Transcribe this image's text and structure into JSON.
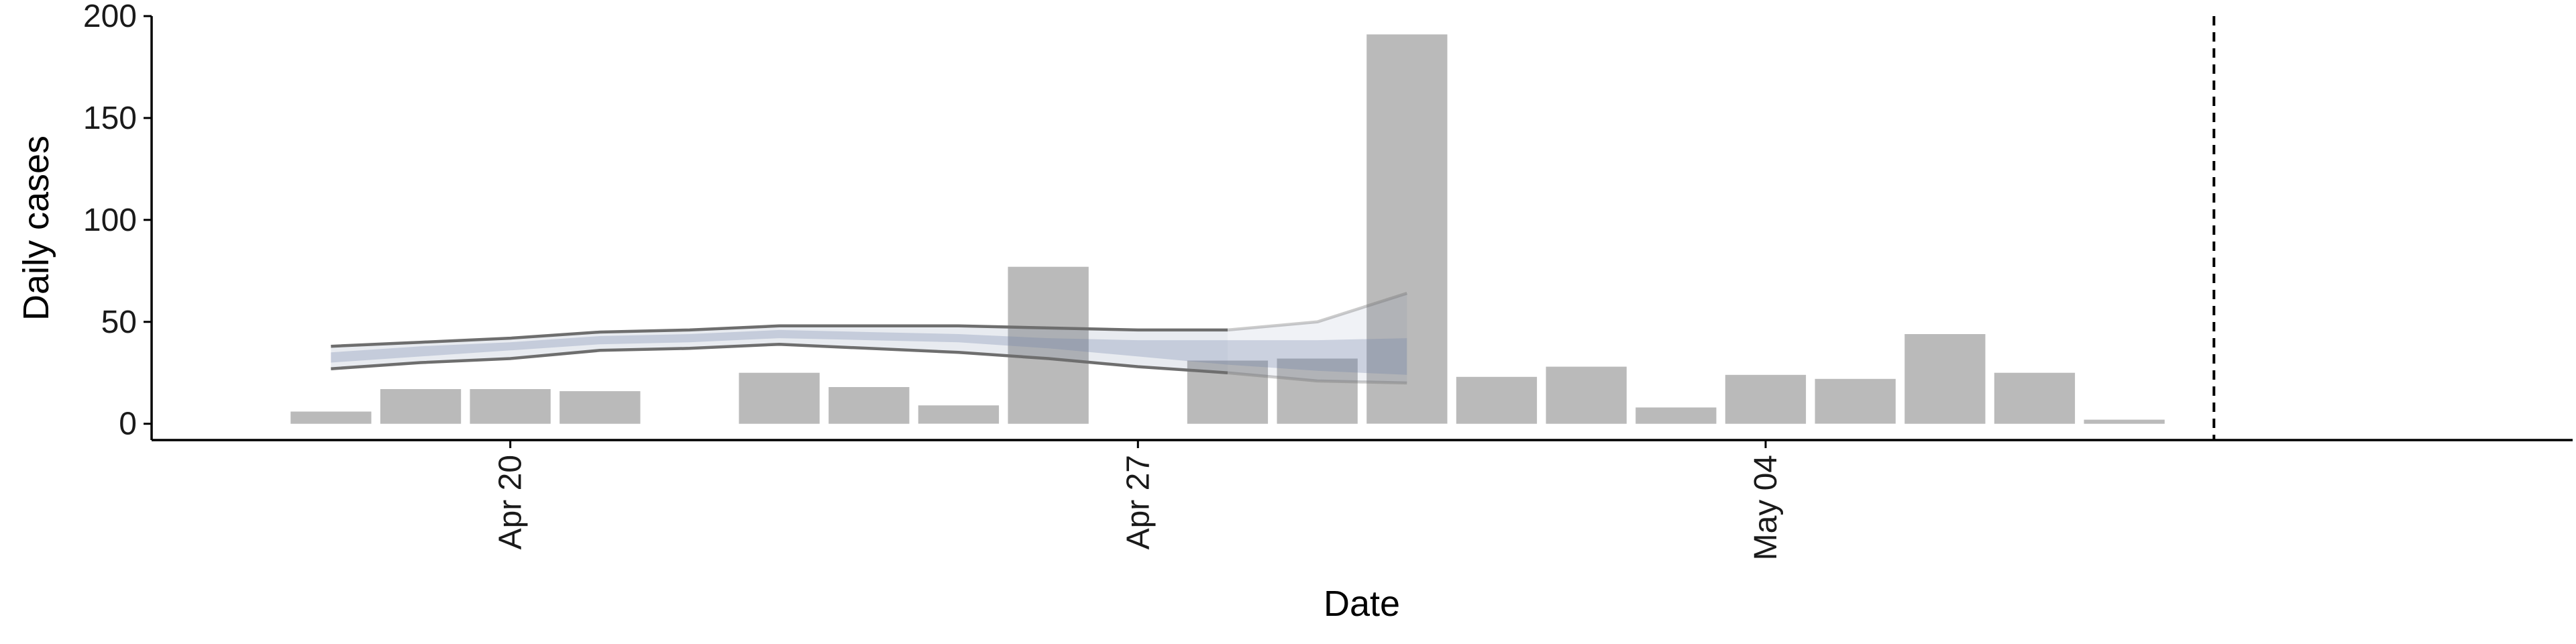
{
  "chart_data": {
    "type": "bar",
    "xlabel": "Date",
    "ylabel": "Daily cases",
    "x_axis_kind": "date",
    "x_range": [
      "2020-04-16",
      "2020-05-13"
    ],
    "ylim": [
      -8,
      200
    ],
    "y_ticks": [
      0,
      50,
      100,
      150,
      200
    ],
    "x_ticks": [
      {
        "date": "2020-04-20",
        "label": "Apr 20"
      },
      {
        "date": "2020-04-27",
        "label": "Apr 27"
      },
      {
        "date": "2020-05-04",
        "label": "May 04"
      }
    ],
    "grid": false,
    "legend": "none",
    "series": [
      {
        "type": "bar",
        "color": "#bababa",
        "points": [
          {
            "date": "2020-04-18",
            "value": 6
          },
          {
            "date": "2020-04-19",
            "value": 17
          },
          {
            "date": "2020-04-20",
            "value": 17
          },
          {
            "date": "2020-04-21",
            "value": 16
          },
          {
            "date": "2020-04-23",
            "value": 25
          },
          {
            "date": "2020-04-24",
            "value": 18
          },
          {
            "date": "2020-04-25",
            "value": 9
          },
          {
            "date": "2020-04-26",
            "value": 77
          },
          {
            "date": "2020-04-28",
            "value": 31
          },
          {
            "date": "2020-04-29",
            "value": 32
          },
          {
            "date": "2020-04-30",
            "value": 191
          },
          {
            "date": "2020-05-01",
            "value": 23
          },
          {
            "date": "2020-05-02",
            "value": 28
          },
          {
            "date": "2020-05-03",
            "value": 8
          },
          {
            "date": "2020-05-04",
            "value": 24
          },
          {
            "date": "2020-05-05",
            "value": 22
          },
          {
            "date": "2020-05-06",
            "value": 44
          },
          {
            "date": "2020-05-07",
            "value": 25
          },
          {
            "date": "2020-05-08",
            "value": 2
          }
        ]
      },
      {
        "type": "band",
        "color": "#5d7097",
        "points": [
          {
            "date": "2020-04-18",
            "low": 27,
            "high": 38
          },
          {
            "date": "2020-04-19",
            "low": 30,
            "high": 40
          },
          {
            "date": "2020-04-20",
            "low": 32,
            "high": 42
          },
          {
            "date": "2020-04-21",
            "low": 36,
            "high": 45
          },
          {
            "date": "2020-04-22",
            "low": 37,
            "high": 46
          },
          {
            "date": "2020-04-23",
            "low": 39,
            "high": 48
          },
          {
            "date": "2020-04-24",
            "low": 37,
            "high": 48
          },
          {
            "date": "2020-04-25",
            "low": 35,
            "high": 48
          },
          {
            "date": "2020-04-26",
            "low": 32,
            "high": 47
          },
          {
            "date": "2020-04-27",
            "low": 28,
            "high": 46
          },
          {
            "date": "2020-04-28",
            "low": 25,
            "high": 46
          },
          {
            "date": "2020-04-29",
            "low": 21,
            "high": 50
          },
          {
            "date": "2020-04-30",
            "low": 20,
            "high": 64
          }
        ]
      },
      {
        "type": "band",
        "color": "#6b7fa6",
        "points": [
          {
            "date": "2020-04-18",
            "low": 30,
            "high": 35
          },
          {
            "date": "2020-04-19",
            "low": 33,
            "high": 38
          },
          {
            "date": "2020-04-20",
            "low": 36,
            "high": 40
          },
          {
            "date": "2020-04-21",
            "low": 39,
            "high": 43
          },
          {
            "date": "2020-04-22",
            "low": 40,
            "high": 44
          },
          {
            "date": "2020-04-23",
            "low": 42,
            "high": 46
          },
          {
            "date": "2020-04-24",
            "low": 41,
            "high": 45
          },
          {
            "date": "2020-04-25",
            "low": 40,
            "high": 44
          },
          {
            "date": "2020-04-26",
            "low": 37,
            "high": 42
          },
          {
            "date": "2020-04-27",
            "low": 33,
            "high": 41
          },
          {
            "date": "2020-04-28",
            "low": 29,
            "high": 41
          },
          {
            "date": "2020-04-29",
            "low": 26,
            "high": 41
          },
          {
            "date": "2020-04-30",
            "low": 24,
            "high": 42
          }
        ]
      }
    ],
    "reference_lines": [
      {
        "axis": "x",
        "date": "2020-05-09",
        "style": "dashed",
        "color": "#000000"
      }
    ]
  }
}
